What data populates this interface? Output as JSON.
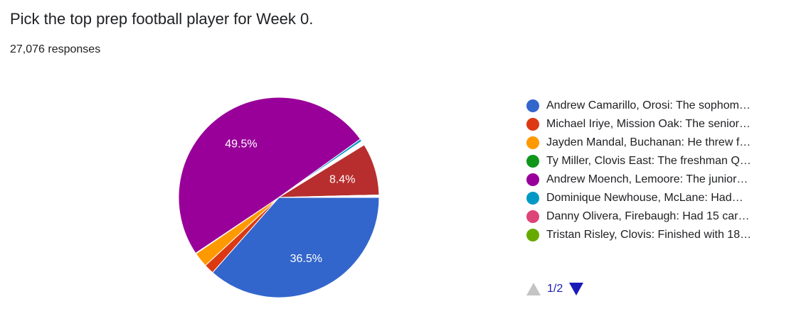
{
  "question": "Pick the top prep football player for Week 0.",
  "responses": "27,076 responses",
  "colors": {
    "blue": "#3366cc",
    "red": "#dc3912",
    "orange": "#ff9900",
    "green": "#109618",
    "purple": "#990099",
    "teal": "#0099c6",
    "pink": "#dd4477",
    "lightgreen": "#66aa00",
    "darkred": "#b82e2e",
    "white": "#ffffff"
  },
  "chart_data": {
    "type": "pie",
    "title": "Pick the top prep football player for Week 0.",
    "slices": [
      {
        "label": "Andrew Camarillo, Orosi: The sophom…",
        "value": 36.5,
        "color": "#3366cc",
        "shown_label": "36.5%"
      },
      {
        "label": "Michael Iriye, Mission Oak: The senior…",
        "value": 1.6,
        "color": "#dc3912",
        "shown_label": ""
      },
      {
        "label": "Jayden Mandal, Buchanan: He threw f…",
        "value": 2.4,
        "color": "#ff9900",
        "shown_label": ""
      },
      {
        "label": "Ty Miller, Clovis East: The freshman Q…",
        "value": 0.1,
        "color": "#109618",
        "shown_label": ""
      },
      {
        "label": "Andrew Moench, Lemoore: The junior…",
        "value": 49.5,
        "color": "#990099",
        "shown_label": "49.5%"
      },
      {
        "label": "Dominique Newhouse, McLane: Had…",
        "value": 0.4,
        "color": "#0099c6",
        "shown_label": ""
      },
      {
        "label": "Danny Olivera, Firebaugh: Had 15 car…",
        "value": 0.1,
        "color": "#dd4477",
        "shown_label": ""
      },
      {
        "label": "Tristan Risley, Clovis: Finished with 18…",
        "value": 0.1,
        "color": "#66aa00",
        "shown_label": ""
      },
      {
        "label": "",
        "value": 0.5,
        "color": "#ffffff",
        "shown_label": ""
      },
      {
        "label": "",
        "value": 8.4,
        "color": "#b82e2e",
        "shown_label": "8.4%"
      },
      {
        "label": "",
        "value": 0.4,
        "color": "#ffffff",
        "shown_label": ""
      }
    ],
    "legend_position": "right"
  },
  "legend": [
    {
      "label": "Andrew Camarillo, Orosi: The sophom…",
      "color": "#3366cc"
    },
    {
      "label": "Michael Iriye, Mission Oak: The senior…",
      "color": "#dc3912"
    },
    {
      "label": "Jayden Mandal, Buchanan: He threw f…",
      "color": "#ff9900"
    },
    {
      "label": "Ty Miller, Clovis East: The freshman Q…",
      "color": "#109618"
    },
    {
      "label": "Andrew Moench, Lemoore: The junior…",
      "color": "#990099"
    },
    {
      "label": "Dominique Newhouse, McLane: Had…",
      "color": "#0099c6"
    },
    {
      "label": "Danny Olivera, Firebaugh: Had 15 car…",
      "color": "#dd4477"
    },
    {
      "label": "Tristan Risley, Clovis: Finished with 18…",
      "color": "#66aa00"
    }
  ],
  "pager": {
    "label": "1/2",
    "prev_icon": "triangle-up-icon",
    "next_icon": "triangle-down-icon"
  }
}
